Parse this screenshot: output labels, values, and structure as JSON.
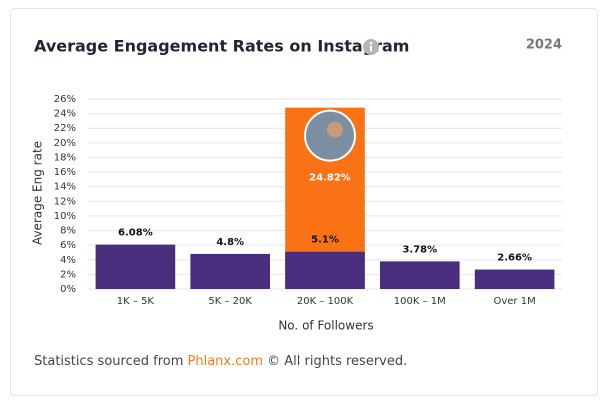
{
  "year": "2024",
  "chart_data": {
    "type": "bar",
    "title": "Average Engagement Rates on Instagram",
    "categories": [
      "1K – 5K",
      "5K – 20K",
      "20K – 100K",
      "100K – 1M",
      "Over 1M"
    ],
    "values": [
      6.08,
      4.8,
      5.1,
      3.78,
      2.66
    ],
    "value_labels": [
      "6.08%",
      "4.8%",
      "5.1%",
      "3.78%",
      "2.66%"
    ],
    "color": "#4a2d7d",
    "highlight": {
      "values": [
        null,
        null,
        24.82,
        null,
        null
      ],
      "value_labels": [
        null,
        null,
        "24.82%",
        null,
        null
      ],
      "color": "#f97316"
    },
    "xlabel": "No. of Followers",
    "ylabel": "Average Eng rate",
    "ylim": [
      0,
      26
    ],
    "yticks": [
      {
        "value": 0,
        "label": "0%"
      },
      {
        "value": 2,
        "label": "2%"
      },
      {
        "value": 4,
        "label": "4%"
      },
      {
        "value": 6,
        "label": "6%"
      },
      {
        "value": 8,
        "label": "8%"
      },
      {
        "value": 10,
        "label": "10%"
      },
      {
        "value": 12,
        "label": "12%"
      },
      {
        "value": 14,
        "label": "14%"
      },
      {
        "value": 16,
        "label": "16%"
      },
      {
        "value": 18,
        "label": "18%"
      },
      {
        "value": 20,
        "label": "20%"
      },
      {
        "value": 22,
        "label": "22%"
      },
      {
        "value": 24,
        "label": "24%"
      },
      {
        "value": 26,
        "label": "26%"
      }
    ],
    "grid": true
  },
  "footer": {
    "prefix": "Statistics sourced from",
    "link": "Phlanx.com",
    "suffix": "© All rights reserved."
  }
}
